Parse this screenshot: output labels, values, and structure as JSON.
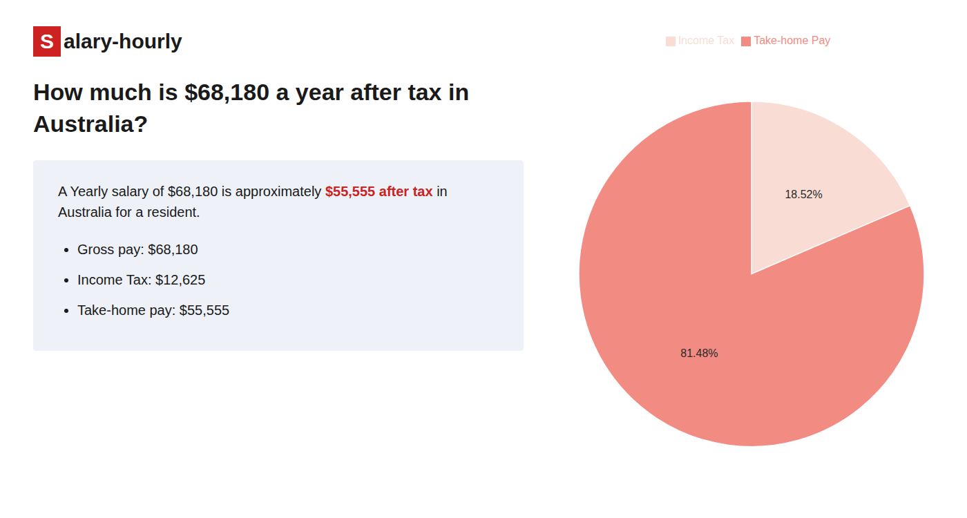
{
  "chart_data": {
    "type": "pie",
    "title": "How much is $68,180 a year after tax in Australia?",
    "categories": [
      "Income Tax",
      "Take-home Pay"
    ],
    "values": [
      18.52,
      81.48
    ],
    "value_labels": [
      "18.52%",
      "81.48%"
    ],
    "colors": [
      "#f9ddd5",
      "#f28b82"
    ],
    "data_labels": true,
    "legend": "top",
    "annotations": [
      [
        {
          "text": "S",
          "color": "#cc2222"
        },
        {
          "text": "alary-hourly"
        }
      ],
      [
        {
          "text": "A Yearly salary of $68,180 is approximately "
        },
        {
          "text": "$55,555 after tax",
          "color": "#cc2222"
        },
        {
          "text": " in"
        }
      ],
      [
        {
          "text": "Australia for a resident."
        }
      ],
      [
        {
          "text": "Gross pay: $68,180"
        }
      ],
      [
        {
          "text": "Income Tax: $12,625"
        }
      ],
      [
        {
          "text": "Take-home pay: $55,555"
        }
      ]
    ]
  }
}
